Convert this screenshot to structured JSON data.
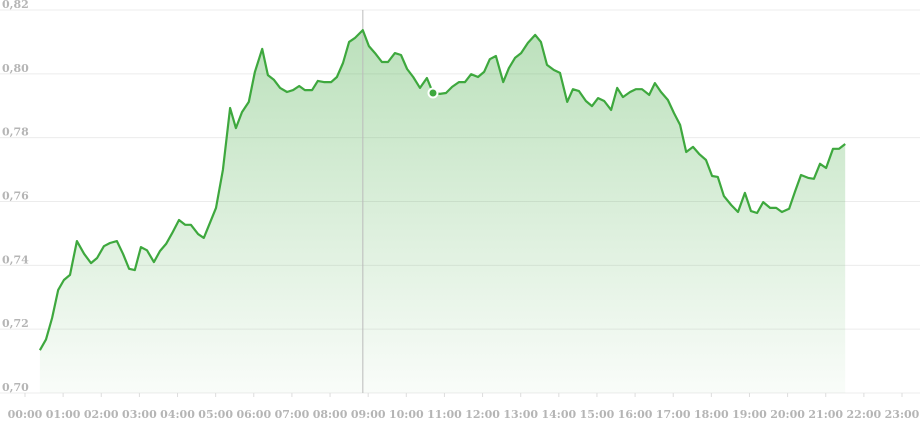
{
  "chart_data": {
    "type": "area",
    "color": "#3ea83e",
    "grid": true,
    "xlim": [
      0,
      23
    ],
    "ylim": [
      0.7,
      0.82
    ],
    "xticks": [
      {
        "value": 0,
        "label": "00:00"
      },
      {
        "value": 1,
        "label": "01:00"
      },
      {
        "value": 2,
        "label": "02:00"
      },
      {
        "value": 3,
        "label": "03:00"
      },
      {
        "value": 4,
        "label": "04:00"
      },
      {
        "value": 5,
        "label": "05:00"
      },
      {
        "value": 6,
        "label": "06:00"
      },
      {
        "value": 7,
        "label": "07:00"
      },
      {
        "value": 8,
        "label": "08:00"
      },
      {
        "value": 9,
        "label": "09:00"
      },
      {
        "value": 10,
        "label": "10:00"
      },
      {
        "value": 11,
        "label": "11:00"
      },
      {
        "value": 12,
        "label": "12:00"
      },
      {
        "value": 13,
        "label": "13:00"
      },
      {
        "value": 14,
        "label": "14:00"
      },
      {
        "value": 15,
        "label": "15:00"
      },
      {
        "value": 16,
        "label": "16:00"
      },
      {
        "value": 17,
        "label": "17:00"
      },
      {
        "value": 18,
        "label": "18:00"
      },
      {
        "value": 19,
        "label": "19:00"
      },
      {
        "value": 20,
        "label": "20:00"
      },
      {
        "value": 21,
        "label": "21:00"
      },
      {
        "value": 22,
        "label": "22:00"
      },
      {
        "value": 23,
        "label": "23:00"
      }
    ],
    "yticks": [
      {
        "value": 0.7,
        "label": "0,70"
      },
      {
        "value": 0.72,
        "label": "0,72"
      },
      {
        "value": 0.74,
        "label": "0,74"
      },
      {
        "value": 0.76,
        "label": "0,76"
      },
      {
        "value": 0.78,
        "label": "0,78"
      },
      {
        "value": 0.8,
        "label": "0,80"
      },
      {
        "value": 0.82,
        "label": "0,82"
      }
    ],
    "x": [
      0.39,
      0.55,
      0.71,
      0.87,
      1.02,
      1.18,
      1.36,
      1.55,
      1.73,
      1.89,
      2.07,
      2.23,
      2.41,
      2.57,
      2.73,
      2.88,
      3.04,
      3.2,
      3.38,
      3.54,
      3.7,
      3.86,
      4.04,
      4.2,
      4.35,
      4.54,
      4.69,
      4.85,
      5.01,
      5.19,
      5.38,
      5.53,
      5.69,
      5.87,
      6.03,
      6.22,
      6.37,
      6.53,
      6.69,
      6.87,
      7.03,
      7.19,
      7.34,
      7.53,
      7.68,
      7.84,
      8.03,
      8.18,
      8.34,
      8.5,
      8.65,
      8.86,
      9.02,
      9.18,
      9.36,
      9.52,
      9.7,
      9.86,
      10.02,
      10.18,
      10.36,
      10.54,
      10.7,
      10.88,
      11.04,
      11.2,
      11.38,
      11.54,
      11.7,
      11.88,
      12.04,
      12.19,
      12.35,
      12.54,
      12.69,
      12.85,
      13.01,
      13.19,
      13.38,
      13.53,
      13.69,
      13.87,
      14.03,
      14.22,
      14.37,
      14.53,
      14.71,
      14.87,
      15.03,
      15.19,
      15.37,
      15.53,
      15.68,
      15.87,
      16.02,
      16.18,
      16.37,
      16.52,
      16.68,
      16.86,
      17.02,
      17.18,
      17.34,
      17.52,
      17.68,
      17.86,
      18.02,
      18.17,
      18.33,
      18.52,
      18.7,
      18.88,
      19.04,
      19.2,
      19.36,
      19.54,
      19.7,
      19.85,
      20.04,
      20.19,
      20.35,
      20.54,
      20.69,
      20.85,
      21.01,
      21.19,
      21.35,
      21.51
    ],
    "values": [
      0.7134,
      0.7168,
      0.7235,
      0.7323,
      0.7354,
      0.737,
      0.7476,
      0.7436,
      0.7407,
      0.7423,
      0.746,
      0.747,
      0.7476,
      0.7436,
      0.7389,
      0.7385,
      0.7457,
      0.7447,
      0.741,
      0.7445,
      0.7467,
      0.7501,
      0.7542,
      0.7527,
      0.7527,
      0.7498,
      0.7486,
      0.7533,
      0.758,
      0.7699,
      0.7893,
      0.783,
      0.788,
      0.7912,
      0.8006,
      0.8078,
      0.7996,
      0.7981,
      0.7956,
      0.7943,
      0.7949,
      0.7962,
      0.7949,
      0.7949,
      0.7978,
      0.7974,
      0.7974,
      0.799,
      0.8034,
      0.81,
      0.8112,
      0.8137,
      0.8087,
      0.8065,
      0.8037,
      0.8037,
      0.8065,
      0.8059,
      0.8015,
      0.799,
      0.7956,
      0.7987,
      0.794,
      0.7937,
      0.794,
      0.7959,
      0.7974,
      0.7974,
      0.7999,
      0.799,
      0.8006,
      0.8046,
      0.8056,
      0.7974,
      0.8018,
      0.805,
      0.8065,
      0.8097,
      0.8122,
      0.81,
      0.8028,
      0.8012,
      0.8003,
      0.7912,
      0.7952,
      0.7946,
      0.7915,
      0.7899,
      0.7924,
      0.7915,
      0.7887,
      0.7956,
      0.7927,
      0.7943,
      0.7952,
      0.7952,
      0.7934,
      0.7971,
      0.7943,
      0.7918,
      0.7877,
      0.784,
      0.7755,
      0.7771,
      0.7749,
      0.773,
      0.768,
      0.7677,
      0.7617,
      0.7589,
      0.7567,
      0.7627,
      0.757,
      0.7564,
      0.7598,
      0.758,
      0.758,
      0.7567,
      0.7577,
      0.763,
      0.7683,
      0.7674,
      0.7671,
      0.7718,
      0.7705,
      0.7765,
      0.7765,
      0.778
    ]
  }
}
